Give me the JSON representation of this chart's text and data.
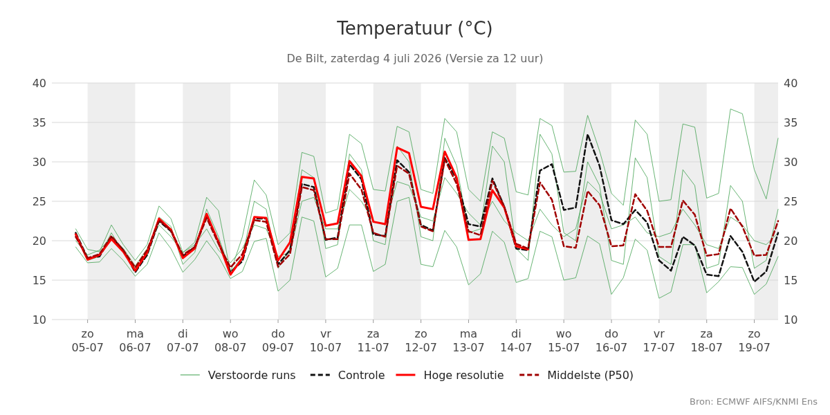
{
  "chart_data": {
    "type": "line",
    "title": "Temperatuur (°C)",
    "subtitle": "De Bilt, zaterdag  4 juli 2026 (Versie za 12 uur)",
    "annotations": [
      "Bron: ECMWF AIFS/KNMI Ens"
    ],
    "x": [
      "2026-07-04T18:00",
      "2026-07-05T00:00",
      "2026-07-05T06:00",
      "2026-07-05T12:00",
      "2026-07-05T18:00",
      "2026-07-06T00:00",
      "2026-07-06T06:00",
      "2026-07-06T12:00",
      "2026-07-06T18:00",
      "2026-07-07T00:00",
      "2026-07-07T06:00",
      "2026-07-07T12:00",
      "2026-07-07T18:00",
      "2026-07-08T00:00",
      "2026-07-08T06:00",
      "2026-07-08T12:00",
      "2026-07-08T18:00",
      "2026-07-09T00:00",
      "2026-07-09T06:00",
      "2026-07-09T12:00",
      "2026-07-09T18:00",
      "2026-07-10T00:00",
      "2026-07-10T06:00",
      "2026-07-10T12:00",
      "2026-07-10T18:00",
      "2026-07-11T00:00",
      "2026-07-11T06:00",
      "2026-07-11T12:00",
      "2026-07-11T18:00",
      "2026-07-12T00:00",
      "2026-07-12T06:00",
      "2026-07-12T12:00",
      "2026-07-12T18:00",
      "2026-07-13T00:00",
      "2026-07-13T06:00",
      "2026-07-13T12:00",
      "2026-07-13T18:00",
      "2026-07-14T00:00",
      "2026-07-14T06:00",
      "2026-07-14T12:00",
      "2026-07-14T18:00",
      "2026-07-15T00:00",
      "2026-07-15T06:00",
      "2026-07-15T12:00",
      "2026-07-15T18:00",
      "2026-07-16T00:00",
      "2026-07-16T06:00",
      "2026-07-16T12:00",
      "2026-07-16T18:00",
      "2026-07-17T00:00",
      "2026-07-17T06:00",
      "2026-07-17T12:00",
      "2026-07-17T18:00",
      "2026-07-18T00:00",
      "2026-07-18T06:00",
      "2026-07-18T12:00",
      "2026-07-18T18:00",
      "2026-07-19T00:00",
      "2026-07-19T06:00",
      "2026-07-19T12:00"
    ],
    "series": [
      {
        "name": "Verstoorde runs",
        "color": "#3a9e4a",
        "line_style": "solid",
        "values": [
          21.5,
          18.9,
          18.6,
          22,
          19.5,
          17.5,
          19.5,
          24.4,
          22.8,
          18.5,
          19.8,
          25.5,
          23.8,
          16,
          20.5,
          27.7,
          25.8,
          19.5,
          21,
          31.2,
          30.7,
          23.5,
          24,
          33.5,
          32.3,
          26.5,
          26.3,
          34.5,
          33.8,
          26.5,
          26,
          35.5,
          33.8,
          26.5,
          25,
          33.8,
          33,
          26.2,
          25.8,
          35.5,
          34.6,
          28.7,
          28.8,
          35.9,
          31.4,
          26,
          24.5,
          35.3,
          33.5,
          25,
          25.2,
          34.8,
          34.4,
          25.4,
          26,
          36.7,
          36.1,
          29,
          25.3,
          33
        ]
      },
      {
        "color": "#3a9e4a",
        "line_style": "solid",
        "values": [
          19.2,
          17.2,
          17.3,
          19,
          17.5,
          15.5,
          17,
          21,
          19,
          16,
          17.6,
          20,
          18,
          15.2,
          16.1,
          19.9,
          20.3,
          13.6,
          15,
          23,
          22.5,
          15.4,
          16.5,
          22,
          22,
          16.1,
          17,
          25,
          25.5,
          17,
          16.7,
          21.3,
          19.2,
          14.4,
          15.8,
          21.2,
          19.8,
          14.7,
          15.2,
          21.2,
          20.5,
          15,
          15.3,
          20.6,
          19.6,
          13.2,
          15.3,
          20.2,
          18.8,
          12.7,
          13.5,
          19.5,
          19.5,
          13.4,
          14.8,
          16.7,
          16.6,
          13.2,
          14.5,
          18
        ]
      },
      {
        "color": "#3a9e4a",
        "line_style": "solid",
        "values": [
          20.8,
          17.5,
          18,
          21,
          18.5,
          16.5,
          18,
          23,
          21.8,
          17,
          18.5,
          24,
          20.5,
          16,
          18,
          25,
          24,
          16.5,
          19,
          29,
          28,
          19,
          19.5,
          31,
          29,
          20,
          19.5,
          32,
          30,
          20.5,
          20,
          33,
          29.5,
          21,
          21.5,
          32,
          30,
          19,
          17.5,
          33.5,
          31,
          21,
          20,
          30,
          27,
          17.5,
          17,
          30.5,
          28,
          18,
          17,
          29,
          27,
          16.5,
          17,
          27,
          25,
          16.5,
          17.5,
          24
        ]
      },
      {
        "color": "#3a9e4a",
        "line_style": "solid",
        "values": [
          20,
          18.2,
          18.8,
          20.5,
          19,
          16.8,
          19,
          22,
          20.5,
          18.5,
          19.5,
          21.5,
          18.8,
          17.2,
          19,
          22,
          21.5,
          18,
          18.5,
          25,
          25.5,
          21.5,
          21.5,
          26.5,
          25,
          22.5,
          22,
          27.5,
          27,
          23,
          22.5,
          28,
          26,
          23.5,
          22,
          25,
          22.5,
          21,
          20,
          24,
          22,
          20.5,
          21.5,
          27.5,
          26,
          21.5,
          22,
          23,
          21,
          20.5,
          21,
          24,
          22,
          19.5,
          19,
          23,
          22,
          20,
          19.5,
          21
        ]
      },
      {
        "name": "Controle",
        "color": "#111111",
        "line_style": "dashed",
        "values": [
          21,
          17.8,
          18,
          20.5,
          18.8,
          16,
          18.2,
          22.5,
          21.2,
          18,
          19.2,
          23.2,
          19.9,
          16,
          17.4,
          22.8,
          22.8,
          17,
          18.8,
          27.2,
          26.8,
          20.1,
          20.4,
          29.7,
          27.8,
          20.8,
          20.6,
          30.2,
          28.7,
          22,
          21.3,
          30.5,
          27.8,
          22.1,
          21.8,
          27.9,
          24.3,
          19,
          18.8,
          28.9,
          29.7,
          23.9,
          24.2,
          33.5,
          29.5,
          22.6,
          22.1,
          23.9,
          22.3,
          17.5,
          16.2,
          20.5,
          19.4,
          15.7,
          15.5,
          20.6,
          18.6,
          14.8,
          16.1,
          21
        ]
      },
      {
        "name": "Hoge resolutie",
        "color": "#ff0000",
        "line_style": "solid",
        "values": [
          20.8,
          17.6,
          18.2,
          20.2,
          18.6,
          16.2,
          18.5,
          22.8,
          21.4,
          17.8,
          19,
          23.4,
          19.8,
          15.7,
          17.8,
          23.0,
          22.9,
          17.5,
          19.8,
          28.1,
          27.9,
          21.9,
          22.2,
          30.1,
          28.2,
          22.4,
          22.1,
          31.8,
          31.1,
          24.3,
          24.0,
          31.3,
          28.0,
          20.1,
          20.2,
          26.4,
          24.2,
          19.3,
          18.9,
          null,
          null,
          null,
          null,
          null,
          null,
          null,
          null,
          null,
          null,
          null,
          null,
          null,
          null,
          null,
          null,
          null,
          null,
          null,
          null,
          null
        ]
      },
      {
        "name": "Middelste (P50)",
        "color": "#a00000",
        "line_style": "dashed",
        "values": [
          20.5,
          17.8,
          18.3,
          20.6,
          18.8,
          16.6,
          18.8,
          22.6,
          21.3,
          18.2,
          19.2,
          22.9,
          19.6,
          16.6,
          18.3,
          22.6,
          22.4,
          16.7,
          18.3,
          26.8,
          26.4,
          20.2,
          20.2,
          28.5,
          26.5,
          21,
          20.5,
          29.5,
          28.5,
          21.8,
          21.2,
          30.3,
          27.2,
          21.2,
          20.7,
          27.6,
          24.3,
          19.6,
          19,
          27.4,
          25.2,
          19.3,
          19.1,
          26.3,
          24.5,
          19.3,
          19.4,
          25.9,
          23.8,
          19.2,
          19.2,
          25.1,
          23.3,
          18.1,
          18.3,
          24.1,
          21.8,
          18.1,
          18.2,
          22.5
        ]
      }
    ],
    "xlim": [
      "2026-07-04T06:00",
      "2026-07-19T12:00"
    ],
    "xticks": [
      {
        "value": "2026-07-05",
        "label": "zo\n05-07"
      },
      {
        "value": "2026-07-06",
        "label": "ma\n06-07"
      },
      {
        "value": "2026-07-07",
        "label": "di\n07-07"
      },
      {
        "value": "2026-07-08",
        "label": "wo\n08-07"
      },
      {
        "value": "2026-07-09",
        "label": "do\n09-07"
      },
      {
        "value": "2026-07-10",
        "label": "vr\n10-07"
      },
      {
        "value": "2026-07-11",
        "label": "za\n11-07"
      },
      {
        "value": "2026-07-12",
        "label": "zo\n12-07"
      },
      {
        "value": "2026-07-13",
        "label": "ma\n13-07"
      },
      {
        "value": "2026-07-14",
        "label": "di\n14-07"
      },
      {
        "value": "2026-07-15",
        "label": "wo\n15-07"
      },
      {
        "value": "2026-07-16",
        "label": "do\n16-07"
      },
      {
        "value": "2026-07-17",
        "label": "vr\n17-07"
      },
      {
        "value": "2026-07-18",
        "label": "za\n18-07"
      },
      {
        "value": "2026-07-19",
        "label": "zo\n19-07"
      }
    ],
    "ylim": [
      10,
      40
    ],
    "yticks": [
      10,
      15,
      20,
      25,
      30,
      35,
      40
    ],
    "y2lim": [
      10,
      40
    ],
    "y2ticks": [
      10,
      15,
      20,
      25,
      30,
      35,
      40
    ],
    "bands": [
      {
        "axis": "x",
        "from": "2026-07-05",
        "to": "2026-07-06",
        "color": "#eeeeee"
      },
      {
        "axis": "x",
        "from": "2026-07-07",
        "to": "2026-07-08",
        "color": "#eeeeee"
      },
      {
        "axis": "x",
        "from": "2026-07-09",
        "to": "2026-07-10",
        "color": "#eeeeee"
      },
      {
        "axis": "x",
        "from": "2026-07-11",
        "to": "2026-07-12",
        "color": "#eeeeee"
      },
      {
        "axis": "x",
        "from": "2026-07-13",
        "to": "2026-07-14",
        "color": "#eeeeee"
      },
      {
        "axis": "x",
        "from": "2026-07-15",
        "to": "2026-07-16",
        "color": "#eeeeee"
      },
      {
        "axis": "x",
        "from": "2026-07-17",
        "to": "2026-07-18",
        "color": "#eeeeee"
      },
      {
        "axis": "x",
        "from": "2026-07-19",
        "to": "2026-07-19T12:00",
        "color": "#eeeeee"
      }
    ],
    "grid": "y",
    "legend": "bottom"
  }
}
